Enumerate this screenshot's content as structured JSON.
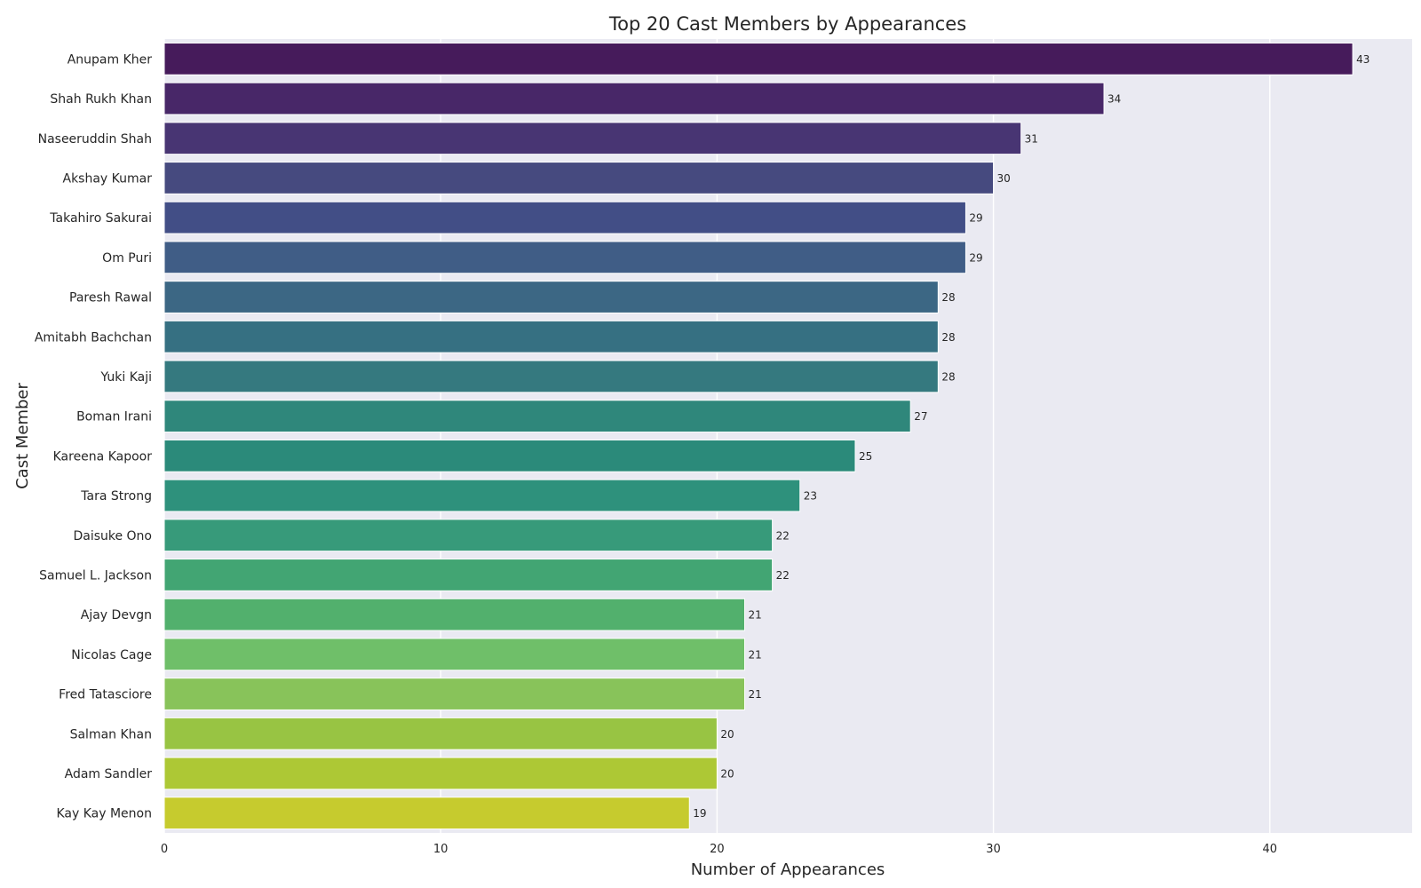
{
  "chart_data": {
    "type": "bar",
    "orientation": "horizontal",
    "title": "Top 20 Cast Members by Appearances",
    "xlabel": "Number of Appearances",
    "ylabel": "Cast Member",
    "xlim": [
      0,
      45.15
    ],
    "xticks": [
      0,
      10,
      20,
      30,
      40
    ],
    "grid": true,
    "legend": "none",
    "background_color": "#eaeaf2",
    "grid_color": "#ffffff",
    "categories": [
      "Anupam Kher",
      "Shah Rukh Khan",
      "Naseeruddin Shah",
      "Akshay Kumar",
      "Takahiro Sakurai",
      "Om Puri",
      "Paresh Rawal",
      "Amitabh Bachchan",
      "Yuki Kaji",
      "Boman Irani",
      "Kareena Kapoor",
      "Tara Strong",
      "Daisuke Ono",
      "Samuel L. Jackson",
      "Ajay Devgn",
      "Nicolas Cage",
      "Fred Tatasciore",
      "Salman Khan",
      "Adam Sandler",
      "Kay Kay Menon"
    ],
    "values": [
      43,
      34,
      31,
      30,
      29,
      29,
      28,
      28,
      28,
      27,
      25,
      23,
      22,
      22,
      21,
      21,
      21,
      20,
      20,
      19
    ],
    "colors": [
      "#461b5b",
      "#482768",
      "#483573",
      "#464a7f",
      "#424e86",
      "#405d86",
      "#3c6784",
      "#367082",
      "#35797f",
      "#2f877b",
      "#2b8a7a",
      "#2e917c",
      "#379a7a",
      "#42a573",
      "#52b06d",
      "#6fbf69",
      "#88c35a",
      "#98c443",
      "#adc835",
      "#c6cb2e"
    ]
  }
}
